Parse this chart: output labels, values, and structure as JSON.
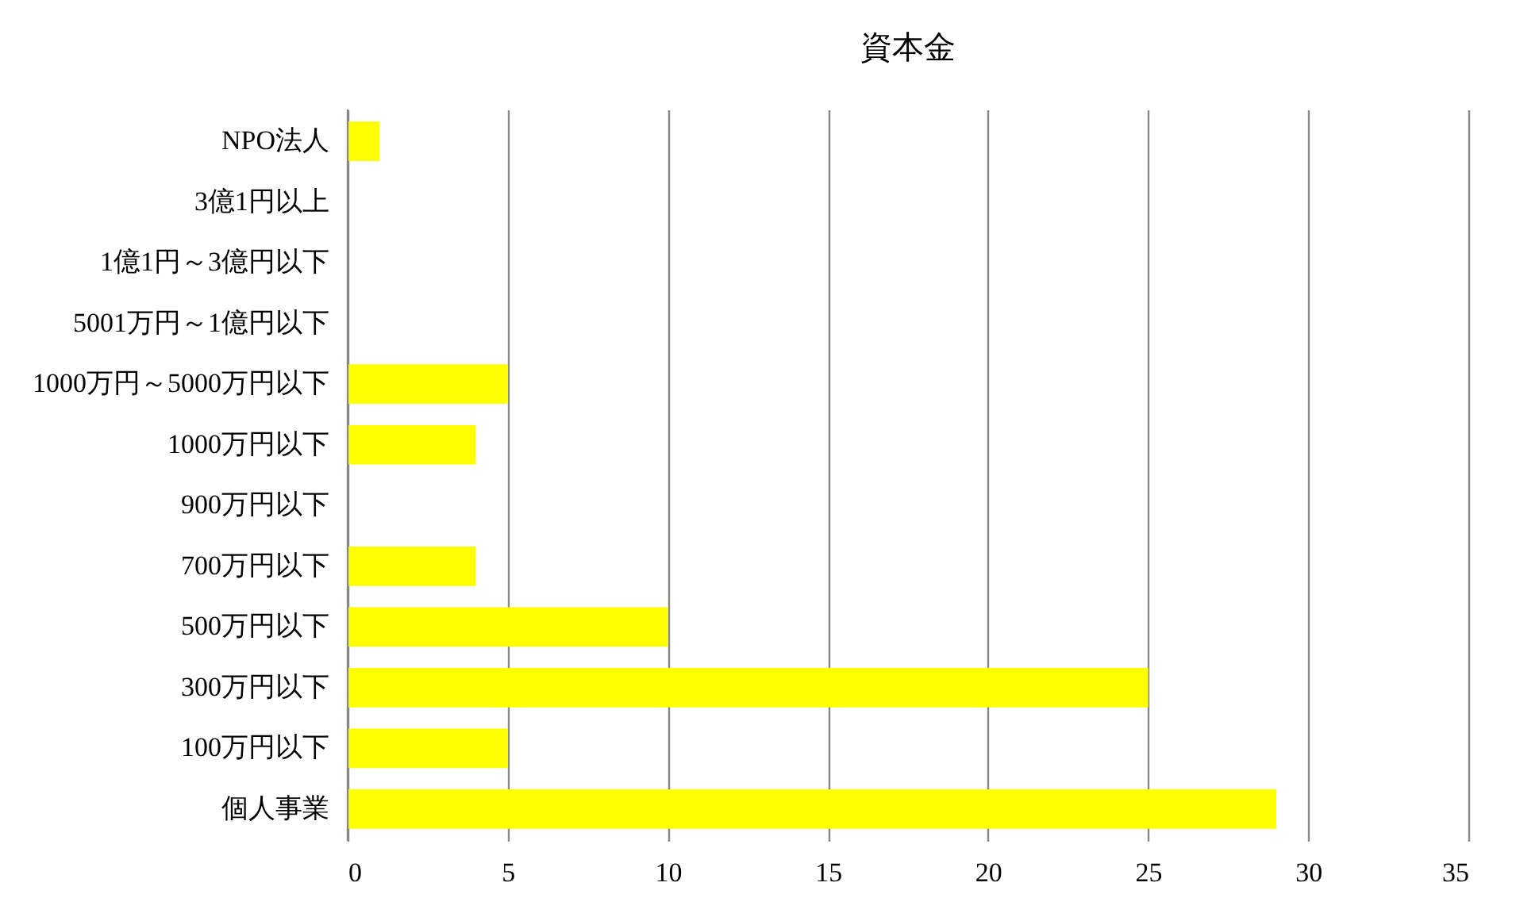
{
  "chart_data": {
    "type": "bar",
    "orientation": "horizontal",
    "title": "資本金",
    "categories": [
      "NPO法人",
      "3億1円以上",
      "1億1円～3億円以下",
      "5001万円～1億円以下",
      "1000万円～5000万円以下",
      "1000万円以下",
      "900万円以下",
      "700万円以下",
      "500万円以下",
      "300万円以下",
      "100万円以下",
      "個人事業"
    ],
    "values": [
      1,
      0,
      0,
      0,
      5,
      4,
      0,
      4,
      10,
      25,
      5,
      29
    ],
    "color": "#ffff00",
    "xlim": [
      0,
      35
    ],
    "xticks": [
      0,
      5,
      10,
      15,
      20,
      25,
      30,
      35
    ],
    "grid": "x"
  }
}
